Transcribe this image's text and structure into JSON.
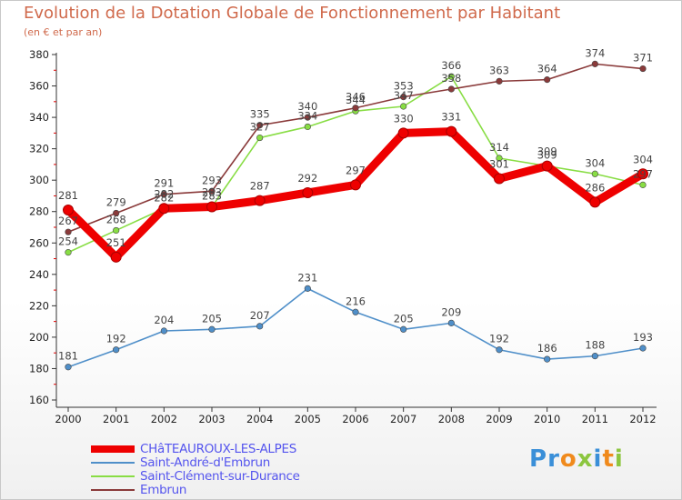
{
  "header": {
    "title": "Evolution de la Dotation Globale de Fonctionnement par Habitant",
    "subtitle": "(en € et par an)"
  },
  "logo": {
    "text": "Proxiti",
    "letters": [
      {
        "char": "P",
        "color": "#3a8fd8"
      },
      {
        "char": "r",
        "color": "#3a8fd8"
      },
      {
        "char": "o",
        "color": "#f08a1c"
      },
      {
        "char": "x",
        "color": "#8cc63f"
      },
      {
        "char": "i",
        "color": "#3a8fd8"
      },
      {
        "char": "t",
        "color": "#f08a1c"
      },
      {
        "char": "i",
        "color": "#8cc63f"
      }
    ]
  },
  "chart_data": {
    "type": "line",
    "title": "Evolution de la Dotation Globale de Fonctionnement par Habitant",
    "subtitle": "(en € et par an)",
    "x": [
      "2000",
      "2001",
      "2002",
      "2003",
      "2004",
      "2005",
      "2006",
      "2007",
      "2008",
      "2009",
      "2010",
      "2011",
      "2012"
    ],
    "ylim": [
      160,
      380
    ],
    "yticks": [
      160,
      180,
      200,
      220,
      240,
      260,
      280,
      300,
      320,
      340,
      360,
      380
    ],
    "grid": false,
    "legend_position": "bottom-left",
    "series": [
      {
        "name": "CHâTEAUROUX-LES-ALPES",
        "color": "#ee0000",
        "highlight": true,
        "values": [
          281,
          251,
          282,
          283,
          287,
          292,
          297,
          330,
          331,
          301,
          309,
          286,
          304
        ],
        "labels": [
          "281",
          "251",
          "282",
          "283",
          "287",
          "292",
          "297",
          "330",
          "331",
          "301",
          "309",
          "286",
          "304"
        ]
      },
      {
        "name": "Saint-André-d'Embrun",
        "color": "#4f8fc9",
        "values": [
          181,
          192,
          204,
          205,
          207,
          231,
          216,
          205,
          209,
          192,
          186,
          188,
          193
        ],
        "labels": [
          "181",
          "192",
          "204",
          "205",
          "207",
          "231",
          "216",
          "205",
          "209",
          "192",
          "186",
          "188",
          "193"
        ]
      },
      {
        "name": "Saint-Clément-sur-Durance",
        "color": "#88dd44",
        "values": [
          254,
          268,
          282,
          283,
          327,
          334,
          344,
          347,
          366,
          314,
          309,
          304,
          297
        ],
        "labels": [
          "254",
          "268",
          "282",
          "283",
          "327",
          "334",
          "344",
          "347",
          "366",
          "314",
          "309",
          "304",
          "297"
        ]
      },
      {
        "name": "Embrun",
        "color": "#8a3a3a",
        "values": [
          267,
          279,
          291,
          293,
          335,
          340,
          346,
          353,
          358,
          363,
          364,
          374,
          371
        ],
        "labels": [
          "267",
          "279",
          "291",
          "293",
          "335",
          "340",
          "346",
          "353",
          "358",
          "363",
          "364",
          "374",
          "371"
        ]
      }
    ]
  }
}
